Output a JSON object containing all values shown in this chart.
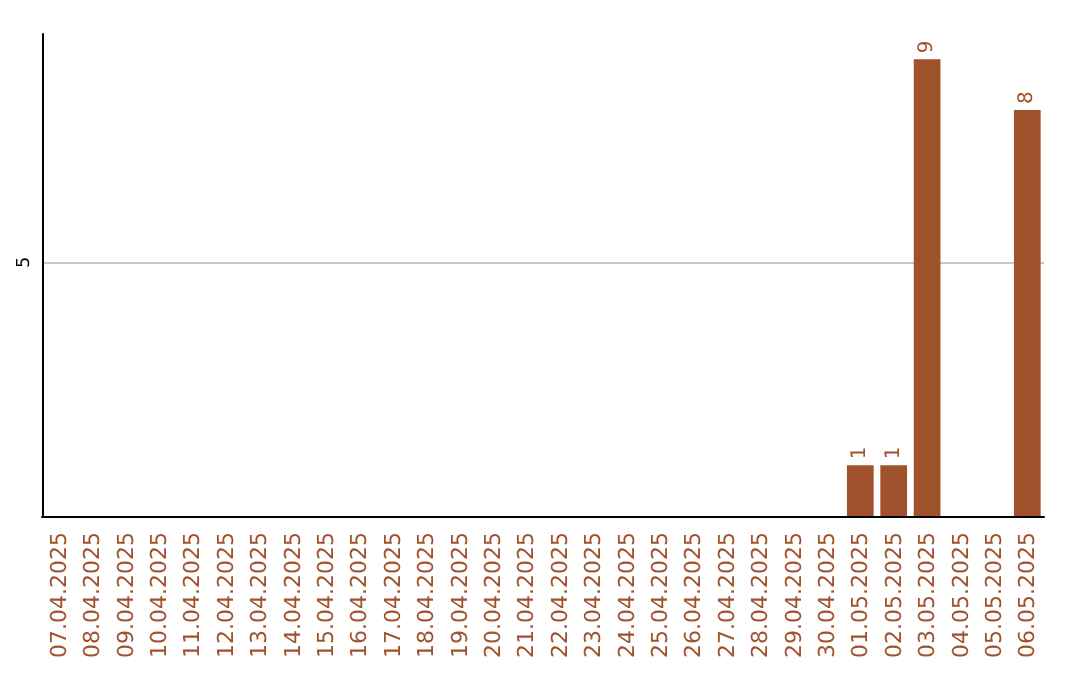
{
  "chart_data": {
    "type": "bar",
    "categories": [
      "07.04.2025",
      "08.04.2025",
      "09.04.2025",
      "10.04.2025",
      "11.04.2025",
      "12.04.2025",
      "13.04.2025",
      "14.04.2025",
      "15.04.2025",
      "16.04.2025",
      "17.04.2025",
      "18.04.2025",
      "19.04.2025",
      "20.04.2025",
      "21.04.2025",
      "22.04.2025",
      "23.04.2025",
      "24.04.2025",
      "25.04.2025",
      "26.04.2025",
      "27.04.2025",
      "28.04.2025",
      "29.04.2025",
      "30.04.2025",
      "01.05.2025",
      "02.05.2025",
      "03.05.2025",
      "04.05.2025",
      "05.05.2025",
      "06.05.2025"
    ],
    "values": [
      null,
      null,
      null,
      null,
      null,
      null,
      null,
      null,
      null,
      null,
      null,
      null,
      null,
      null,
      null,
      null,
      null,
      null,
      null,
      null,
      null,
      null,
      null,
      null,
      1,
      1,
      9,
      null,
      null,
      8
    ],
    "color": "#a0522d",
    "ylim": [
      0,
      9.5
    ],
    "yticks": [
      5
    ],
    "grid": "y",
    "data_labels": true
  }
}
